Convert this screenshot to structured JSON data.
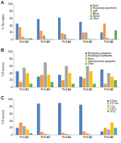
{
  "chart_data": [
    {
      "type": "bar",
      "title": "A",
      "y_label": "% Samples",
      "categories": [
        "PeV-A1",
        "PeV-A3",
        "PeV-A4",
        "PeV-A5",
        "PeV-A6"
      ],
      "ylim": [
        0,
        100
      ],
      "yticks": [
        0,
        20,
        40,
        60,
        80,
        100
      ],
      "legend": "top-right",
      "series": [
        {
          "name": "Stool",
          "color": "#4f81bd",
          "values": [
            45,
            58,
            62,
            50,
            20
          ]
        },
        {
          "name": "Respiratory specimens",
          "color": "#f79646",
          "values": [
            35,
            25,
            18,
            20,
            45
          ]
        },
        {
          "name": "CSF",
          "color": "#a5a5a5",
          "values": [
            8,
            12,
            15,
            20,
            5
          ]
        },
        {
          "name": "Blood",
          "color": "#ffc000",
          "values": [
            5,
            3,
            3,
            3,
            2
          ]
        },
        {
          "name": "Serum",
          "color": "#4bacc6",
          "values": [
            3,
            1,
            1,
            1,
            2
          ]
        },
        {
          "name": "Other",
          "color": "#70ad47",
          "values": [
            4,
            1,
            1,
            1,
            26
          ]
        }
      ]
    },
    {
      "type": "bar",
      "title": "B",
      "y_label": "% Patients",
      "categories": [
        "PeV-A1",
        "PeV-A3",
        "PeV-A4",
        "PeV-A5",
        "PeV-A6"
      ],
      "ylim": [
        0,
        100
      ],
      "yticks": [
        0,
        20,
        40,
        60,
        80,
        100
      ],
      "legend": "top-right",
      "series": [
        {
          "name": "Respiratory symptoms",
          "color": "#4f81bd",
          "values": [
            45,
            30,
            35,
            30,
            50
          ]
        },
        {
          "name": "Neurological symptoms",
          "color": "#f79646",
          "values": [
            15,
            35,
            20,
            25,
            10
          ]
        },
        {
          "name": "Fever",
          "color": "#a5a5a5",
          "values": [
            55,
            70,
            60,
            60,
            40
          ]
        },
        {
          "name": "Gastrointestinal symptoms",
          "color": "#ffc000",
          "values": [
            40,
            35,
            40,
            45,
            30
          ]
        },
        {
          "name": "Other",
          "color": "#70ad47",
          "values": [
            10,
            15,
            10,
            10,
            20
          ]
        }
      ]
    },
    {
      "type": "bar",
      "title": "C",
      "y_label": "% Patients",
      "categories": [
        "PeV-A1",
        "PeV-A3",
        "PeV-A4",
        "PeV-A5",
        "PeV-A6"
      ],
      "ylim": [
        0,
        100
      ],
      "yticks": [
        0,
        20,
        40,
        60,
        80,
        100
      ],
      "legend": "top-right",
      "series": [
        {
          "name": "0-3 mo",
          "color": "#4f81bd",
          "values": [
            20,
            88,
            90,
            85,
            10
          ]
        },
        {
          "name": "4-12 mo",
          "color": "#f79646",
          "values": [
            35,
            8,
            6,
            10,
            20
          ]
        },
        {
          "name": "1-5 y",
          "color": "#a5a5a5",
          "values": [
            25,
            3,
            3,
            4,
            15
          ]
        },
        {
          "name": "6-15 y",
          "color": "#ffc000",
          "values": [
            15,
            1,
            1,
            1,
            35
          ]
        },
        {
          "name": ">15 y",
          "color": "#4bacc6",
          "values": [
            5,
            0,
            0,
            0,
            20
          ]
        }
      ]
    }
  ]
}
